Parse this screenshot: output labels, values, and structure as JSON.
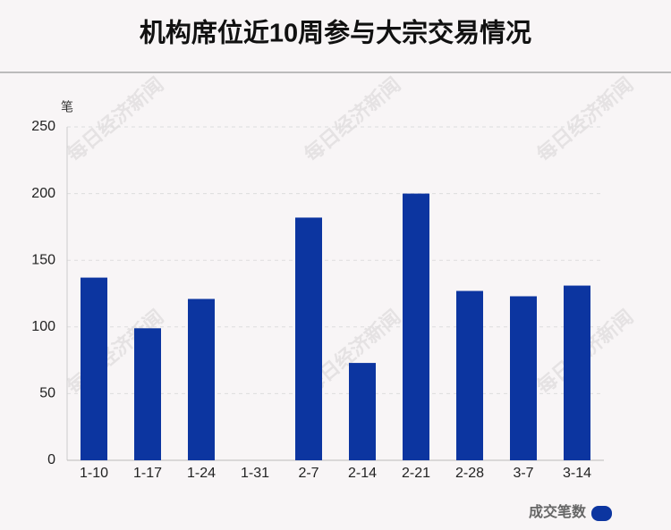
{
  "chart_data": {
    "type": "bar",
    "title": "机构席位近10周参与大宗交易情况",
    "y_label": "笔",
    "watermark": "每日经济新闻",
    "categories": [
      "1-10",
      "1-17",
      "1-24",
      "1-31",
      "2-7",
      "2-14",
      "2-21",
      "2-28",
      "3-7",
      "3-14"
    ],
    "series": [
      {
        "name": "成交笔数",
        "color": "#0c35a0",
        "values": [
          137,
          99,
          121,
          0,
          182,
          73,
          200,
          127,
          123,
          131
        ]
      }
    ],
    "ylim": [
      0,
      250
    ],
    "yticks": [
      0,
      50,
      100,
      150,
      200,
      250
    ],
    "grid": true,
    "legend": "bottom-right"
  }
}
